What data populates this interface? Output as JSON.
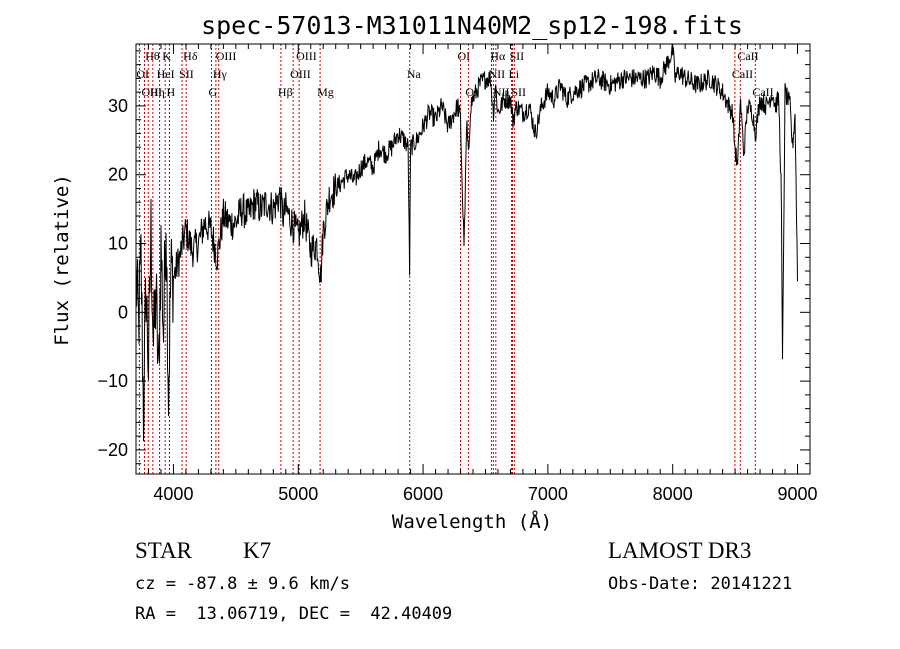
{
  "chart_data": {
    "type": "line",
    "title": "spec-57013-M31011N40M2_sp12-198.fits",
    "xlabel": "Wavelength (Å)",
    "ylabel": "Flux (relative)",
    "xlim": [
      3700,
      9100
    ],
    "ylim": [
      -23.5,
      39
    ],
    "xticks": [
      4000,
      5000,
      6000,
      7000,
      8000,
      9000
    ],
    "yticks": [
      -20,
      -10,
      0,
      10,
      20,
      30
    ],
    "series": [
      {
        "name": "flux",
        "x": [
          3700,
          3720,
          3740,
          3760,
          3780,
          3800,
          3820,
          3840,
          3860,
          3880,
          3900,
          3920,
          3940,
          3960,
          3980,
          4000,
          4050,
          4100,
          4150,
          4200,
          4250,
          4300,
          4350,
          4400,
          4450,
          4500,
          4550,
          4600,
          4650,
          4700,
          4750,
          4800,
          4850,
          4880,
          4900,
          4950,
          5000,
          5050,
          5100,
          5150,
          5180,
          5200,
          5250,
          5300,
          5350,
          5400,
          5450,
          5500,
          5550,
          5600,
          5650,
          5700,
          5750,
          5800,
          5850,
          5880,
          5892,
          5900,
          5950,
          6000,
          6050,
          6100,
          6150,
          6200,
          6250,
          6280,
          6300,
          6320,
          6330,
          6350,
          6363,
          6380,
          6400,
          6450,
          6500,
          6540,
          6563,
          6580,
          6600,
          6650,
          6700,
          6720,
          6750,
          6800,
          6850,
          6900,
          6950,
          7000,
          7050,
          7100,
          7150,
          7200,
          7300,
          7400,
          7500,
          7600,
          7700,
          7800,
          7850,
          7900,
          7950,
          8000,
          8020,
          8050,
          8100,
          8200,
          8300,
          8400,
          8450,
          8480,
          8498,
          8520,
          8542,
          8570,
          8600,
          8640,
          8662,
          8700,
          8750,
          8800,
          8820,
          8850,
          8870,
          8880,
          8900,
          8940,
          8960,
          8980,
          9000
        ],
        "y": [
          5,
          -2,
          8,
          -15,
          4,
          -8,
          12,
          -5,
          3,
          -10,
          10,
          -3,
          15,
          -12,
          6,
          5,
          8,
          12,
          9,
          10,
          13,
          12,
          8,
          14,
          13,
          13,
          15,
          14,
          16,
          15,
          16,
          15,
          17,
          14,
          15,
          13,
          11,
          14,
          9,
          10,
          5,
          12,
          17,
          18,
          19,
          20,
          19,
          21,
          22,
          21,
          24,
          23,
          24,
          26,
          25,
          24,
          6,
          24,
          25,
          27,
          29,
          28,
          30,
          27,
          29,
          30,
          28,
          14,
          10,
          28,
          22,
          30,
          31,
          33,
          34,
          34,
          29,
          33,
          29,
          31,
          31,
          28,
          30,
          29,
          30,
          26,
          30,
          32,
          31,
          33,
          31,
          32,
          33,
          34,
          33,
          34,
          34,
          34,
          35,
          34,
          36,
          38,
          34,
          35,
          34,
          33,
          34,
          32,
          30,
          29,
          24,
          21,
          31,
          23,
          30,
          29,
          26,
          31,
          30,
          32,
          30,
          31,
          18,
          -8,
          32,
          30,
          24,
          29,
          5
        ]
      }
    ],
    "line_markers": [
      {
        "label": "Hθ",
        "x": 3798,
        "row": 0
      },
      {
        "label": "K",
        "x": 3934,
        "row": 0
      },
      {
        "label": "Hδ",
        "x": 4102,
        "row": 0
      },
      {
        "label": "OIII",
        "x": 4363,
        "row": 0
      },
      {
        "label": "OIII",
        "x": 5007,
        "row": 0
      },
      {
        "label": "OI",
        "x": 6300,
        "row": 0
      },
      {
        "label": "Hα",
        "x": 6563,
        "row": 0
      },
      {
        "label": "SII",
        "x": 6716,
        "row": 0
      },
      {
        "label": "CaII",
        "x": 8542,
        "row": 0
      },
      {
        "label": "OI",
        "x": 3727,
        "row": 1
      },
      {
        "label": "HeI",
        "x": 3889,
        "row": 1
      },
      {
        "label": "SII",
        "x": 4069,
        "row": 1
      },
      {
        "label": "Hγ",
        "x": 4340,
        "row": 1
      },
      {
        "label": "OIII",
        "x": 4959,
        "row": 1
      },
      {
        "label": "Na",
        "x": 5893,
        "row": 1
      },
      {
        "label": "NII",
        "x": 6548,
        "row": 1
      },
      {
        "label": "Li",
        "x": 6708,
        "row": 1
      },
      {
        "label": "CaII",
        "x": 8498,
        "row": 1
      },
      {
        "label": "OIII",
        "x": 3768,
        "row": 2
      },
      {
        "label": "Hη",
        "x": 3835,
        "row": 2
      },
      {
        "label": "H",
        "x": 3968,
        "row": 2
      },
      {
        "label": "G",
        "x": 4305,
        "row": 2
      },
      {
        "label": "Hβ",
        "x": 4861,
        "row": 2
      },
      {
        "label": "Mg",
        "x": 5175,
        "row": 2
      },
      {
        "label": "OI",
        "x": 6363,
        "row": 2
      },
      {
        "label": "NII",
        "x": 6583,
        "row": 2
      },
      {
        "label": "SII",
        "x": 6731,
        "row": 2
      },
      {
        "label": "CaII",
        "x": 8662,
        "row": 2
      }
    ]
  },
  "info": {
    "class": "STAR",
    "subclass": "K7",
    "cz": "cz = -87.8 ± 9.6 km/s",
    "radec": "RA =  13.06719, DEC =  42.40409",
    "survey": "LAMOST DR3",
    "obsdate": "Obs-Date: 20141221"
  },
  "colors": {
    "marker": "#cc0000",
    "line": "#000000"
  }
}
